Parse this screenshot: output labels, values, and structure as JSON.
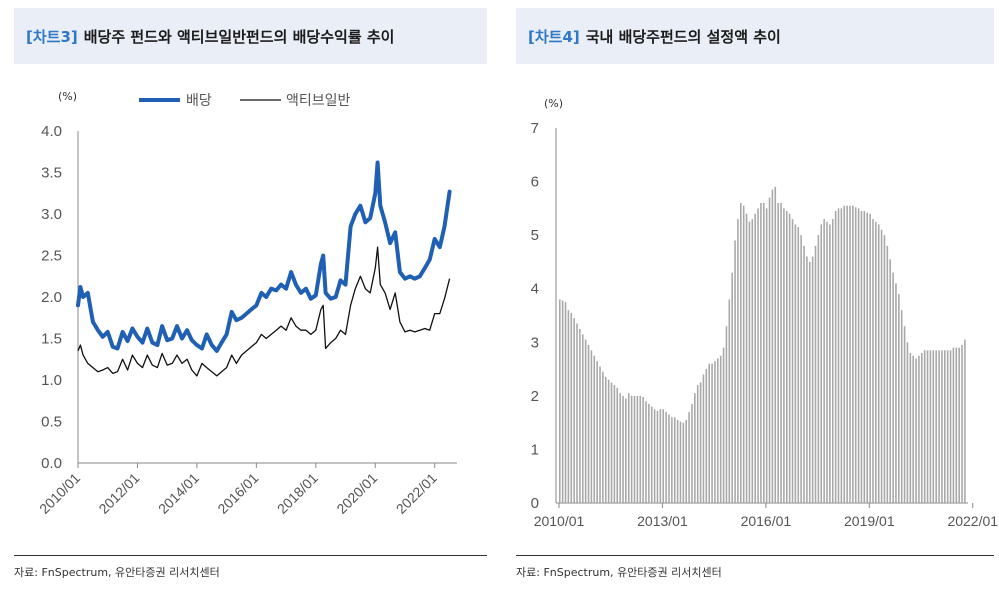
{
  "left": {
    "tag": "[차트3]",
    "title": "배당주 펀드와 액티브일반펀드의 배당수익률 추이",
    "source": "자료: FnSpectrum, 유안타증권 리서치센터",
    "colors": {
      "series_dividend": "#1f5fb4",
      "series_active": "#111111"
    }
  },
  "right": {
    "tag": "[차트4]",
    "title": "국내 배당주펀드의 설정액 추이",
    "source": "자료: FnSpectrum, 유안타증권 리서치센터",
    "colors": {
      "bars": "#a8a8a8"
    }
  },
  "chart_data": [
    {
      "type": "line",
      "unit_label": "(%)",
      "ylim": [
        0,
        4
      ],
      "yticks": [
        "0.0",
        "0.5",
        "1.0",
        "1.5",
        "2.0",
        "2.5",
        "3.0",
        "3.5",
        "4.0"
      ],
      "xlim": [
        2010.0,
        2022.75
      ],
      "xticks": [
        "2010/01",
        "2012/01",
        "2014/01",
        "2016/01",
        "2018/01",
        "2020/01",
        "2022/01"
      ],
      "legend": "top",
      "grid": false,
      "series": [
        {
          "name": "배당",
          "points": [
            [
              2010.0,
              1.9
            ],
            [
              2010.08,
              2.12
            ],
            [
              2010.17,
              2.0
            ],
            [
              2010.33,
              2.05
            ],
            [
              2010.5,
              1.7
            ],
            [
              2010.67,
              1.6
            ],
            [
              2010.83,
              1.52
            ],
            [
              2011.0,
              1.58
            ],
            [
              2011.17,
              1.4
            ],
            [
              2011.33,
              1.38
            ],
            [
              2011.5,
              1.58
            ],
            [
              2011.67,
              1.47
            ],
            [
              2011.83,
              1.62
            ],
            [
              2012.0,
              1.52
            ],
            [
              2012.17,
              1.45
            ],
            [
              2012.33,
              1.62
            ],
            [
              2012.5,
              1.45
            ],
            [
              2012.67,
              1.42
            ],
            [
              2012.83,
              1.65
            ],
            [
              2013.0,
              1.48
            ],
            [
              2013.17,
              1.5
            ],
            [
              2013.33,
              1.65
            ],
            [
              2013.5,
              1.5
            ],
            [
              2013.67,
              1.6
            ],
            [
              2013.83,
              1.48
            ],
            [
              2014.0,
              1.42
            ],
            [
              2014.17,
              1.38
            ],
            [
              2014.33,
              1.55
            ],
            [
              2014.5,
              1.42
            ],
            [
              2014.67,
              1.35
            ],
            [
              2014.83,
              1.45
            ],
            [
              2015.0,
              1.55
            ],
            [
              2015.17,
              1.82
            ],
            [
              2015.33,
              1.72
            ],
            [
              2015.5,
              1.75
            ],
            [
              2015.67,
              1.8
            ],
            [
              2015.83,
              1.85
            ],
            [
              2016.0,
              1.9
            ],
            [
              2016.17,
              2.05
            ],
            [
              2016.33,
              2.0
            ],
            [
              2016.5,
              2.1
            ],
            [
              2016.67,
              2.08
            ],
            [
              2016.83,
              2.15
            ],
            [
              2017.0,
              2.1
            ],
            [
              2017.17,
              2.3
            ],
            [
              2017.33,
              2.15
            ],
            [
              2017.5,
              2.05
            ],
            [
              2017.67,
              2.1
            ],
            [
              2017.83,
              1.98
            ],
            [
              2018.0,
              2.02
            ],
            [
              2018.17,
              2.4
            ],
            [
              2018.25,
              2.5
            ],
            [
              2018.33,
              2.05
            ],
            [
              2018.5,
              1.98
            ],
            [
              2018.67,
              2.0
            ],
            [
              2018.83,
              2.2
            ],
            [
              2019.0,
              2.15
            ],
            [
              2019.17,
              2.85
            ],
            [
              2019.33,
              3.0
            ],
            [
              2019.5,
              3.1
            ],
            [
              2019.67,
              2.9
            ],
            [
              2019.83,
              2.95
            ],
            [
              2020.0,
              3.25
            ],
            [
              2020.08,
              3.62
            ],
            [
              2020.17,
              3.1
            ],
            [
              2020.33,
              2.9
            ],
            [
              2020.5,
              2.65
            ],
            [
              2020.67,
              2.78
            ],
            [
              2020.83,
              2.3
            ],
            [
              2021.0,
              2.22
            ],
            [
              2021.17,
              2.25
            ],
            [
              2021.33,
              2.22
            ],
            [
              2021.5,
              2.25
            ],
            [
              2021.67,
              2.35
            ],
            [
              2021.83,
              2.45
            ],
            [
              2022.0,
              2.7
            ],
            [
              2022.17,
              2.6
            ],
            [
              2022.33,
              2.85
            ],
            [
              2022.5,
              3.27
            ]
          ]
        },
        {
          "name": "액티브일반",
          "points": [
            [
              2010.0,
              1.35
            ],
            [
              2010.08,
              1.42
            ],
            [
              2010.17,
              1.3
            ],
            [
              2010.33,
              1.2
            ],
            [
              2010.5,
              1.15
            ],
            [
              2010.67,
              1.1
            ],
            [
              2010.83,
              1.12
            ],
            [
              2011.0,
              1.15
            ],
            [
              2011.17,
              1.08
            ],
            [
              2011.33,
              1.1
            ],
            [
              2011.5,
              1.25
            ],
            [
              2011.67,
              1.12
            ],
            [
              2011.83,
              1.3
            ],
            [
              2012.0,
              1.2
            ],
            [
              2012.17,
              1.15
            ],
            [
              2012.33,
              1.3
            ],
            [
              2012.5,
              1.18
            ],
            [
              2012.67,
              1.15
            ],
            [
              2012.83,
              1.32
            ],
            [
              2013.0,
              1.18
            ],
            [
              2013.17,
              1.2
            ],
            [
              2013.33,
              1.3
            ],
            [
              2013.5,
              1.2
            ],
            [
              2013.67,
              1.25
            ],
            [
              2013.83,
              1.12
            ],
            [
              2014.0,
              1.05
            ],
            [
              2014.17,
              1.2
            ],
            [
              2014.33,
              1.15
            ],
            [
              2014.5,
              1.1
            ],
            [
              2014.67,
              1.05
            ],
            [
              2014.83,
              1.1
            ],
            [
              2015.0,
              1.15
            ],
            [
              2015.17,
              1.3
            ],
            [
              2015.33,
              1.2
            ],
            [
              2015.5,
              1.3
            ],
            [
              2015.67,
              1.35
            ],
            [
              2015.83,
              1.4
            ],
            [
              2016.0,
              1.45
            ],
            [
              2016.17,
              1.55
            ],
            [
              2016.33,
              1.5
            ],
            [
              2016.5,
              1.55
            ],
            [
              2016.67,
              1.6
            ],
            [
              2016.83,
              1.65
            ],
            [
              2017.0,
              1.6
            ],
            [
              2017.17,
              1.75
            ],
            [
              2017.33,
              1.65
            ],
            [
              2017.5,
              1.6
            ],
            [
              2017.67,
              1.6
            ],
            [
              2017.83,
              1.55
            ],
            [
              2018.0,
              1.6
            ],
            [
              2018.17,
              1.85
            ],
            [
              2018.25,
              1.9
            ],
            [
              2018.33,
              1.38
            ],
            [
              2018.5,
              1.45
            ],
            [
              2018.67,
              1.5
            ],
            [
              2018.83,
              1.6
            ],
            [
              2019.0,
              1.55
            ],
            [
              2019.17,
              1.9
            ],
            [
              2019.33,
              2.1
            ],
            [
              2019.5,
              2.25
            ],
            [
              2019.67,
              2.1
            ],
            [
              2019.83,
              2.05
            ],
            [
              2020.0,
              2.35
            ],
            [
              2020.08,
              2.6
            ],
            [
              2020.17,
              2.15
            ],
            [
              2020.33,
              2.05
            ],
            [
              2020.5,
              1.85
            ],
            [
              2020.67,
              2.05
            ],
            [
              2020.83,
              1.7
            ],
            [
              2021.0,
              1.58
            ],
            [
              2021.17,
              1.6
            ],
            [
              2021.33,
              1.58
            ],
            [
              2021.5,
              1.6
            ],
            [
              2021.67,
              1.62
            ],
            [
              2021.83,
              1.6
            ],
            [
              2022.0,
              1.8
            ],
            [
              2022.17,
              1.8
            ],
            [
              2022.33,
              1.98
            ],
            [
              2022.5,
              2.22
            ]
          ]
        }
      ]
    },
    {
      "type": "bar",
      "unit_label": "(%)",
      "ylim": [
        0,
        7
      ],
      "yticks": [
        "0",
        "1",
        "2",
        "3",
        "4",
        "5",
        "6",
        "7"
      ],
      "xticks": [
        "2010/01",
        "2013/01",
        "2016/01",
        "2019/01",
        "2022/01"
      ],
      "x_start": "2010/01",
      "x_end": "2022/06",
      "legend": "none",
      "grid": false,
      "series": [
        {
          "values": [
            3.8,
            3.78,
            3.75,
            3.6,
            3.55,
            3.45,
            3.35,
            3.25,
            3.15,
            3.05,
            2.95,
            2.85,
            2.75,
            2.65,
            2.55,
            2.45,
            2.35,
            2.3,
            2.25,
            2.2,
            2.15,
            2.05,
            2.0,
            1.95,
            2.05,
            2.0,
            2.0,
            2.0,
            2.0,
            1.98,
            1.9,
            1.85,
            1.8,
            1.75,
            1.72,
            1.75,
            1.75,
            1.7,
            1.65,
            1.6,
            1.6,
            1.55,
            1.52,
            1.5,
            1.55,
            1.7,
            1.85,
            2.05,
            2.2,
            2.25,
            2.4,
            2.5,
            2.6,
            2.6,
            2.65,
            2.7,
            2.75,
            2.9,
            3.3,
            3.8,
            4.3,
            4.9,
            5.3,
            5.6,
            5.55,
            5.4,
            5.25,
            5.3,
            5.4,
            5.5,
            5.6,
            5.6,
            5.5,
            5.7,
            5.85,
            5.9,
            5.6,
            5.6,
            5.5,
            5.45,
            5.4,
            5.3,
            5.2,
            5.15,
            5.0,
            4.8,
            4.6,
            4.5,
            4.6,
            4.8,
            5.0,
            5.2,
            5.3,
            5.25,
            5.2,
            5.3,
            5.45,
            5.5,
            5.5,
            5.55,
            5.55,
            5.55,
            5.55,
            5.52,
            5.5,
            5.45,
            5.45,
            5.42,
            5.4,
            5.3,
            5.25,
            5.2,
            5.1,
            5.0,
            4.8,
            4.55,
            4.3,
            4.1,
            3.9,
            3.6,
            3.3,
            3.0,
            2.8,
            2.75,
            2.7,
            2.75,
            2.8,
            2.85,
            2.85,
            2.85,
            2.85,
            2.85,
            2.85,
            2.85,
            2.85,
            2.85,
            2.85,
            2.9,
            2.9,
            2.9,
            2.95,
            3.05
          ]
        }
      ]
    }
  ]
}
